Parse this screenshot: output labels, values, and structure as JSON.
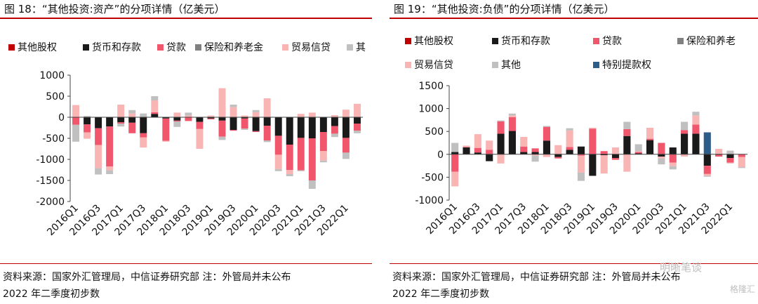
{
  "left": {
    "title": "图 18：“其他投资:资产”的分项详情（亿美元）",
    "source_line1": "资料来源：国家外汇管理局，中信证券研究部  注：外管局并未公布",
    "source_line2": "2022 年二季度初步数",
    "chart_data": {
      "type": "bar",
      "stacked": true,
      "grid": false,
      "legend": "top",
      "ylim": [
        -2000,
        1000
      ],
      "yticks": [
        "1000",
        "500",
        "0",
        "-500",
        "-1000",
        "-1500",
        "-2000"
      ],
      "categories": [
        "2016Q1",
        "2016Q2",
        "2016Q3",
        "2016Q4",
        "2017Q1",
        "2017Q2",
        "2017Q3",
        "2017Q4",
        "2018Q1",
        "2018Q2",
        "2018Q3",
        "2018Q4",
        "2019Q1",
        "2019Q2",
        "2019Q3",
        "2019Q4",
        "2020Q1",
        "2020Q2",
        "2020Q3",
        "2020Q4",
        "2021Q1",
        "2021Q2",
        "2021Q3",
        "2021Q4",
        "2022Q1",
        "2022Q2"
      ],
      "xtick_labels": [
        "2016Q1",
        "2016Q3",
        "2017Q1",
        "2017Q3",
        "2018Q1",
        "2018Q3",
        "2019Q1",
        "2019Q3",
        "2020Q1",
        "2020Q3",
        "2021Q1",
        "2021Q3",
        "2022Q1"
      ],
      "series": [
        {
          "name": "其他股权",
          "color": "#c00000",
          "values": [
            0,
            0,
            0,
            0,
            0,
            0,
            0,
            0,
            0,
            0,
            0,
            0,
            0,
            0,
            0,
            0,
            0,
            0,
            0,
            0,
            0,
            0,
            0,
            0,
            0,
            0
          ]
        },
        {
          "name": "货币和存款",
          "color": "#1a1a1a",
          "values": [
            0,
            -170,
            -260,
            -220,
            -120,
            -130,
            -380,
            80,
            -30,
            -80,
            0,
            -110,
            -30,
            -80,
            -300,
            -30,
            -330,
            -200,
            -440,
            -650,
            -490,
            -500,
            -350,
            -210,
            -490,
            -150
          ]
        },
        {
          "name": "贷款",
          "color": "#f0566c",
          "values": [
            -180,
            -190,
            -400,
            -950,
            -30,
            -250,
            -100,
            40,
            -530,
            -20,
            -90,
            -170,
            -20,
            -380,
            -20,
            -240,
            -20,
            -350,
            -450,
            -600,
            -770,
            -1000,
            -450,
            -180,
            -350,
            -170
          ]
        },
        {
          "name": "保险和养老金",
          "color": "#808080",
          "values": [
            0,
            0,
            0,
            0,
            0,
            0,
            0,
            0,
            0,
            0,
            0,
            0,
            0,
            0,
            0,
            0,
            0,
            0,
            0,
            0,
            0,
            0,
            0,
            0,
            0,
            0
          ]
        },
        {
          "name": "贸易信贷",
          "color": "#f9b4b4",
          "values": [
            290,
            -150,
            -550,
            -90,
            300,
            90,
            -240,
            280,
            -20,
            110,
            40,
            -470,
            40,
            690,
            240,
            40,
            120,
            450,
            -340,
            -100,
            80,
            110,
            -230,
            50,
            180,
            320
          ]
        },
        {
          "name": "其他",
          "color": "#c0c0c0",
          "values": [
            -400,
            30,
            -150,
            -90,
            -70,
            80,
            90,
            100,
            0,
            -130,
            70,
            0,
            0,
            -80,
            60,
            -30,
            50,
            -40,
            -50,
            -50,
            -20,
            -200,
            -40,
            -80,
            -150,
            -60
          ]
        }
      ],
      "legend_visible": [
        "其他股权",
        "货币和存款",
        "贷款",
        "保险和养老金",
        "贸易信贷",
        "其"
      ]
    }
  },
  "right": {
    "title": "图 19：“其他投资:负债”的分项详情（亿美元）",
    "source_line1": "资料来源：国家外汇管理局，中信证券研究部  注：外管局并未公布",
    "source_line2": "2022 年二季度初步数",
    "chart_data": {
      "type": "bar",
      "stacked": true,
      "grid": false,
      "legend": "top",
      "ylim": [
        -1000,
        1500
      ],
      "yticks": [
        "1500",
        "1000",
        "500",
        "0",
        "-500",
        "-1000"
      ],
      "categories": [
        "2016Q1",
        "2016Q2",
        "2016Q3",
        "2016Q4",
        "2017Q1",
        "2017Q2",
        "2017Q3",
        "2017Q4",
        "2018Q1",
        "2018Q2",
        "2018Q3",
        "2018Q4",
        "2019Q1",
        "2019Q2",
        "2019Q3",
        "2019Q4",
        "2020Q1",
        "2020Q2",
        "2020Q3",
        "2020Q4",
        "2021Q1",
        "2021Q2",
        "2021Q3",
        "2021Q4",
        "2022Q1",
        "2022Q2"
      ],
      "xtick_labels": [
        "2016Q1",
        "2016Q3",
        "2017Q1",
        "2017Q3",
        "2018Q1",
        "2018Q3",
        "2019Q1",
        "2019Q3",
        "2020Q1",
        "2020Q3",
        "2021Q1",
        "2021Q3",
        "2022Q1"
      ],
      "series": [
        {
          "name": "其他股权",
          "color": "#c00000",
          "values": [
            0,
            0,
            0,
            0,
            0,
            0,
            0,
            0,
            0,
            0,
            0,
            0,
            0,
            0,
            0,
            0,
            0,
            0,
            0,
            0,
            0,
            0,
            0,
            0,
            0,
            0
          ]
        },
        {
          "name": "货币和存款",
          "color": "#1a1a1a",
          "values": [
            50,
            150,
            40,
            -150,
            450,
            510,
            50,
            50,
            300,
            -60,
            100,
            170,
            -470,
            -20,
            -80,
            400,
            20,
            310,
            -50,
            150,
            450,
            450,
            -250,
            -10,
            -80,
            0
          ]
        },
        {
          "name": "贷款",
          "color": "#f0566c",
          "values": [
            -380,
            10,
            100,
            100,
            270,
            300,
            120,
            80,
            300,
            -30,
            60,
            -30,
            560,
            70,
            -40,
            150,
            30,
            30,
            250,
            -180,
            80,
            200,
            -180,
            -40,
            -100,
            -60
          ]
        },
        {
          "name": "保险和养老金",
          "color": "#808080",
          "values": [
            0,
            0,
            0,
            0,
            0,
            0,
            0,
            0,
            0,
            0,
            0,
            0,
            0,
            0,
            0,
            0,
            0,
            0,
            0,
            0,
            0,
            0,
            0,
            0,
            0,
            0
          ]
        },
        {
          "name": "贸易信贷",
          "color": "#f9b4b4",
          "values": [
            -320,
            30,
            300,
            200,
            -200,
            40,
            210,
            -30,
            -60,
            200,
            360,
            -370,
            20,
            -400,
            150,
            -380,
            20,
            240,
            -40,
            -80,
            -50,
            200,
            -40,
            120,
            -20,
            -220
          ]
        },
        {
          "name": "其他",
          "color": "#c0c0c0",
          "values": [
            200,
            0,
            0,
            0,
            20,
            40,
            0,
            -130,
            20,
            0,
            50,
            -180,
            0,
            0,
            0,
            160,
            150,
            0,
            -130,
            -70,
            180,
            80,
            -20,
            0,
            80,
            -20
          ]
        },
        {
          "name": "特别提款权",
          "color": "#2f5d8a",
          "values": [
            0,
            0,
            0,
            0,
            0,
            0,
            0,
            0,
            0,
            0,
            0,
            0,
            0,
            0,
            0,
            0,
            0,
            0,
            0,
            0,
            0,
            0,
            480,
            0,
            0,
            0
          ]
        }
      ],
      "legend_visible": [
        "其他股权",
        "货币和存款",
        "贷款",
        "保险和养老",
        "贸易信贷",
        "其他",
        "特别提款权"
      ]
    }
  },
  "watermark": {
    "text1": "明晰笔谈",
    "text2": "格隆汇"
  }
}
